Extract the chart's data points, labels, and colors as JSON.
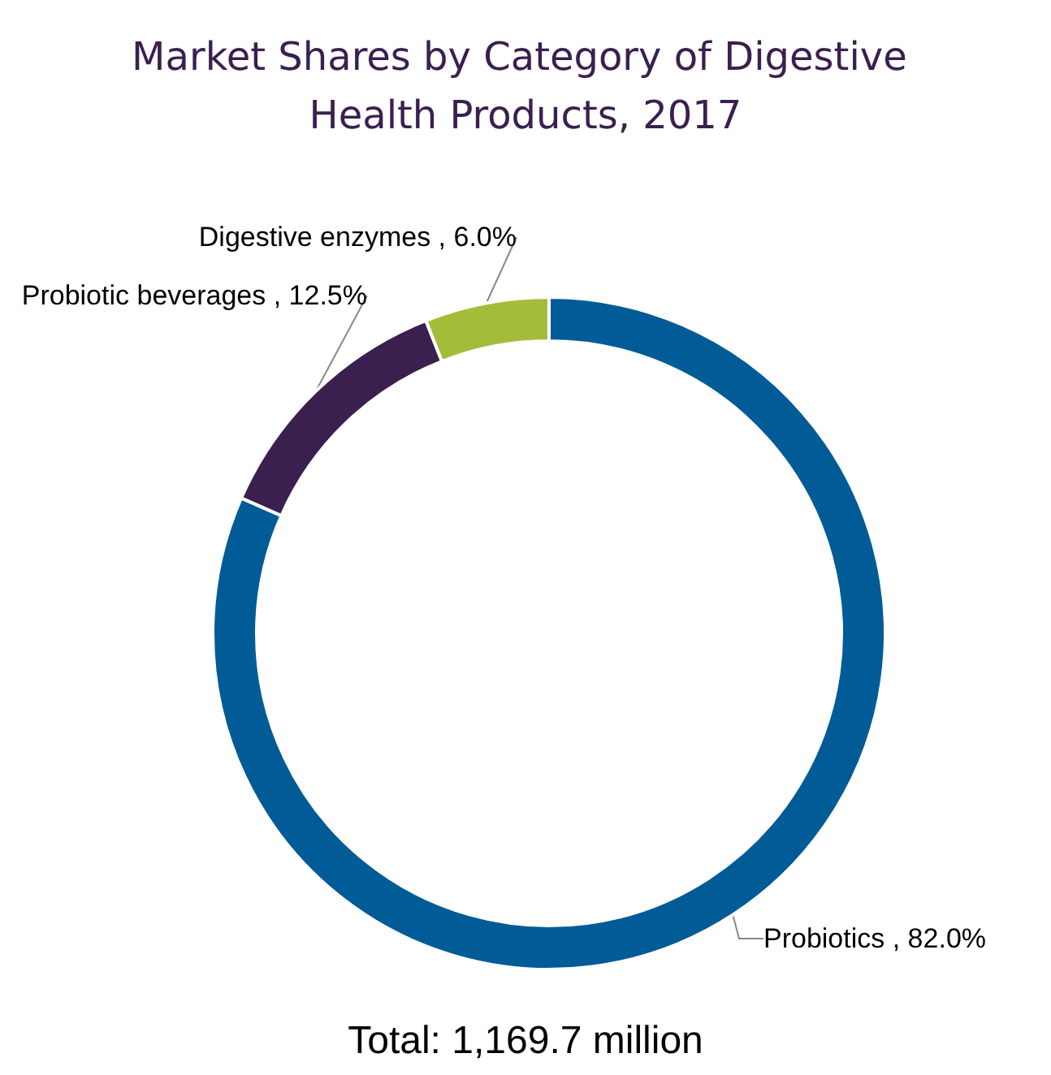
{
  "chart_data": {
    "type": "donut",
    "title": "Market Shares by Category of Digestive Health Products, 2017",
    "categories": [
      "Probiotics",
      "Probiotic beverages",
      "Digestive enzymes"
    ],
    "values": [
      82.0,
      12.5,
      6.0
    ],
    "colors": [
      "#005b96",
      "#3a1f4f",
      "#a3bd3b"
    ],
    "value_labels": [
      "82.0%",
      "12.5%",
      "6.0%"
    ],
    "annotations": [
      "Total: 1,169.7 million"
    ],
    "legend": false
  }
}
